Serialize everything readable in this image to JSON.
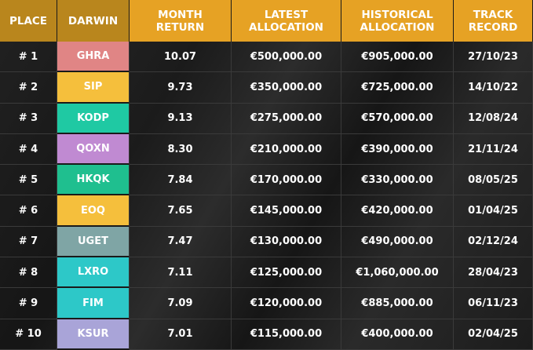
{
  "table": {
    "columns": [
      [
        "PLACE"
      ],
      [
        "DARWIN"
      ],
      [
        "MONTH",
        "RETURN"
      ],
      [
        "LATEST",
        "ALLOCATION"
      ],
      [
        "HISTORICAL",
        "ALLOCATION"
      ],
      [
        "TRACK",
        "RECORD"
      ]
    ],
    "rows": [
      [
        "# 1",
        "GHRA",
        "10.07",
        "€500,000.00",
        "€905,000.00",
        "27/10/23"
      ],
      [
        "# 2",
        "SIP",
        "9.73",
        "€350,000.00",
        "€725,000.00",
        "14/10/22"
      ],
      [
        "# 3",
        "KODP",
        "9.13",
        "€275,000.00",
        "€570,000.00",
        "12/08/24"
      ],
      [
        "# 4",
        "QOXN",
        "8.30",
        "€210,000.00",
        "€390,000.00",
        "21/11/24"
      ],
      [
        "# 5",
        "HKQK",
        "7.84",
        "€170,000.00",
        "€330,000.00",
        "08/05/25"
      ],
      [
        "# 6",
        "EOQ",
        "7.65",
        "€145,000.00",
        "€420,000.00",
        "01/04/25"
      ],
      [
        "# 7",
        "UGET",
        "7.47",
        "€130,000.00",
        "€490,000.00",
        "02/12/24"
      ],
      [
        "# 8",
        "LXRO",
        "7.11",
        "€125,000.00",
        "€1,060,000.00",
        "28/04/23"
      ],
      [
        "# 9",
        "FIM",
        "7.09",
        "€120,000.00",
        "€885,000.00",
        "06/11/23"
      ],
      [
        "# 10",
        "KSUR",
        "7.01",
        "€115,000.00",
        "€400,000.00",
        "02/04/25"
      ]
    ],
    "darwin_colors": [
      "#e08585",
      "#f5bf3c",
      "#1fc9a3",
      "#c08ad2",
      "#1fbf8f",
      "#f5bf3c",
      "#7fa5a5",
      "#2dc8c8",
      "#2dc8c8",
      "#a9a4d8"
    ]
  }
}
